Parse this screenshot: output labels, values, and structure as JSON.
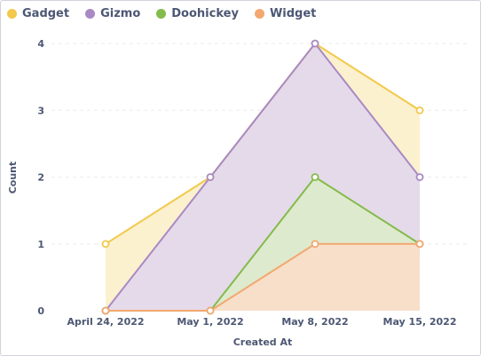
{
  "chart_data": {
    "type": "area",
    "stacked": false,
    "xlabel": "Created At",
    "ylabel": "Count",
    "categories": [
      "April 24, 2022",
      "May 1, 2022",
      "May 8, 2022",
      "May 15, 2022"
    ],
    "ylim": [
      0,
      4
    ],
    "yticks": [
      "0",
      "1",
      "2",
      "3",
      "4"
    ],
    "grid": true,
    "legend_position": "top-left",
    "series": [
      {
        "name": "Gadget",
        "color": "#F2C94C",
        "fill": "#FBF0C9",
        "values": [
          1,
          2,
          4,
          3
        ]
      },
      {
        "name": "Gizmo",
        "color": "#A989C5",
        "fill": "#E2D7EC",
        "values": [
          0,
          2,
          4,
          2
        ]
      },
      {
        "name": "Doohickey",
        "color": "#84BB4C",
        "fill": "#DDEBCB",
        "values": [
          0,
          0,
          2,
          1
        ]
      },
      {
        "name": "Widget",
        "color": "#F2A86F",
        "fill": "#F9DECA",
        "values": [
          0,
          0,
          1,
          1
        ]
      }
    ]
  }
}
